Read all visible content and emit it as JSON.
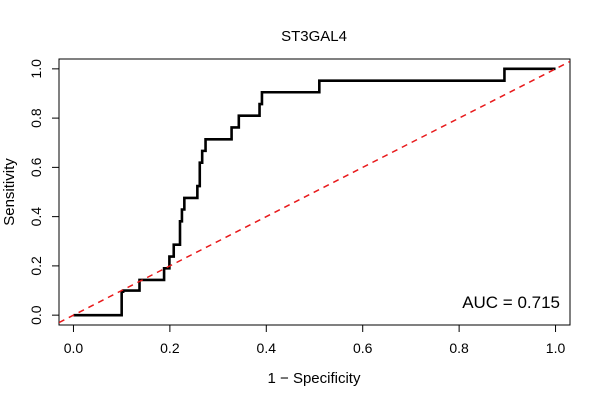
{
  "chart_data": {
    "type": "line",
    "title": "ST3GAL4",
    "xlabel": "1 − Specificity",
    "ylabel": "Sensitivity",
    "xlim": [
      -0.03,
      1.03
    ],
    "ylim": [
      -0.04,
      1.04
    ],
    "xticks": [
      0.0,
      0.2,
      0.4,
      0.6,
      0.8,
      1.0
    ],
    "yticks": [
      0.0,
      0.2,
      0.4,
      0.6,
      0.8,
      1.0
    ],
    "x_tick_labels": [
      "0.0",
      "0.2",
      "0.4",
      "0.6",
      "0.8",
      "1.0"
    ],
    "y_tick_labels": [
      "0.0",
      "0.2",
      "0.4",
      "0.6",
      "0.8",
      "1.0"
    ],
    "grid": false,
    "annotation": "AUC = 0.715",
    "series": [
      {
        "color": "#000000",
        "style": "solid",
        "x": [
          0.0,
          0.1,
          0.1,
          0.103,
          0.103,
          0.137,
          0.137,
          0.188,
          0.188,
          0.199,
          0.199,
          0.208,
          0.208,
          0.221,
          0.221,
          0.225,
          0.225,
          0.23,
          0.23,
          0.257,
          0.257,
          0.262,
          0.262,
          0.267,
          0.267,
          0.274,
          0.274,
          0.328,
          0.328,
          0.343,
          0.343,
          0.386,
          0.386,
          0.391,
          0.391,
          0.51,
          0.51,
          0.894,
          0.894,
          1.0
        ],
        "y": [
          0.0,
          0.0,
          0.095,
          0.095,
          0.1,
          0.1,
          0.143,
          0.143,
          0.19,
          0.19,
          0.238,
          0.238,
          0.286,
          0.286,
          0.381,
          0.381,
          0.429,
          0.429,
          0.476,
          0.476,
          0.524,
          0.524,
          0.619,
          0.619,
          0.667,
          0.667,
          0.714,
          0.714,
          0.762,
          0.762,
          0.81,
          0.81,
          0.857,
          0.857,
          0.905,
          0.905,
          0.952,
          0.952,
          1.0,
          1.0
        ]
      },
      {
        "color": "#e8191b",
        "style": "dashed",
        "x": [
          -0.03,
          1.03
        ],
        "y": [
          -0.03,
          1.03
        ]
      }
    ]
  }
}
